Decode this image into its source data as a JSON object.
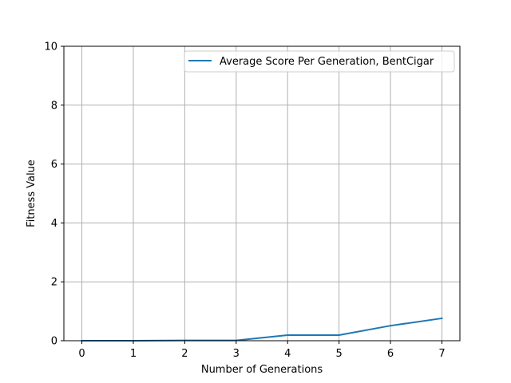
{
  "chart_data": {
    "type": "line",
    "title": "",
    "xlabel": "Number of Generations",
    "ylabel": "Fitness Value",
    "xlim": [
      -0.35,
      7.35
    ],
    "ylim": [
      0,
      10
    ],
    "xticks": [
      0,
      1,
      2,
      3,
      4,
      5,
      6,
      7
    ],
    "yticks": [
      0,
      2,
      4,
      6,
      8,
      10
    ],
    "grid": true,
    "legend_position": "top-right",
    "series": [
      {
        "name": "Average Score Per Generation, BentCigar",
        "color": "#1f77b4",
        "x": [
          0,
          1,
          2,
          3,
          4,
          5,
          6,
          7
        ],
        "y": [
          0.0,
          0.0,
          0.01,
          0.01,
          0.19,
          0.19,
          0.51,
          0.76
        ]
      }
    ]
  }
}
